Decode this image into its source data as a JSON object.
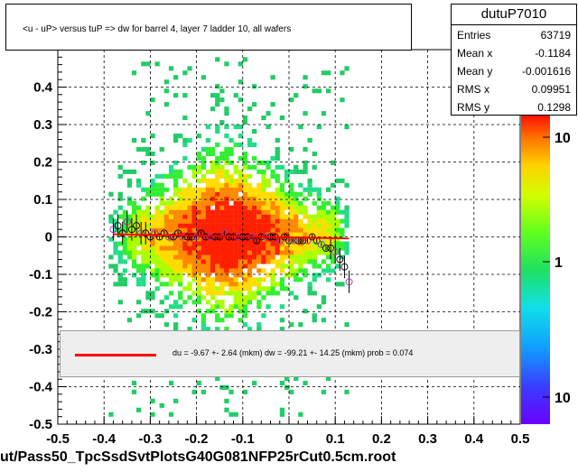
{
  "title": "<u - uP>       versus  tuP =>  dw for barrel 4, layer 7 ladder 10, all wafers",
  "stats": {
    "name": "dutuP7010",
    "rows": [
      {
        "label": "Entries",
        "value": "63719"
      },
      {
        "label": "Mean x",
        "value": "-0.1184"
      },
      {
        "label": "Mean y",
        "value": "-0.001616"
      },
      {
        "label": "RMS x",
        "value": "0.09951"
      },
      {
        "label": "RMS y",
        "value": "0.1298"
      }
    ]
  },
  "fit_text": "du =   -9.67 +-  2.64 (mkm) dw =  -99.21 +- 14.25 (mkm) prob = 0.074",
  "x_title": "ut/Pass50_TpcSsdSvtPlotsG40G081NFP25rCut0.5cm.root",
  "colors": {
    "fit_line": "#ff0000",
    "profile_marker": "#9933cc"
  },
  "chart_data": {
    "type": "heatmap",
    "title": "<u - uP>       versus  tuP =>  dw for barrel 4, layer 7 ladder 10, all wafers",
    "xlim": [
      -0.5,
      0.5
    ],
    "ylim": [
      -0.5,
      0.5
    ],
    "x_ticks": [
      "-0.5",
      "-0.4",
      "-0.3",
      "-0.2",
      "-0.1",
      "0",
      "0.1",
      "0.2",
      "0.3",
      "0.4",
      "0.5"
    ],
    "y_ticks": [
      "-0.5",
      "-0.4",
      "-0.3",
      "-0.2",
      "-0.1",
      "0",
      "0.1",
      "0.2",
      "0.3",
      "0.4"
    ],
    "z_scale": "log",
    "z_ticks": [
      "10",
      "1",
      "10"
    ],
    "grid": true,
    "populated_x_range": [
      -0.39,
      0.13
    ],
    "profile": {
      "x": [
        -0.38,
        -0.37,
        -0.36,
        -0.35,
        -0.34,
        -0.33,
        -0.32,
        -0.31,
        -0.3,
        -0.29,
        -0.28,
        -0.27,
        -0.26,
        -0.25,
        -0.24,
        -0.23,
        -0.22,
        -0.21,
        -0.2,
        -0.19,
        -0.18,
        -0.17,
        -0.16,
        -0.15,
        -0.14,
        -0.13,
        -0.12,
        -0.11,
        -0.1,
        -0.09,
        -0.08,
        -0.07,
        -0.06,
        -0.05,
        -0.04,
        -0.03,
        -0.02,
        -0.01,
        0.0,
        0.01,
        0.02,
        0.03,
        0.04,
        0.05,
        0.06,
        0.07,
        0.08,
        0.09,
        0.1,
        0.11,
        0.12,
        0.13
      ],
      "y": [
        0.02,
        0.03,
        0.01,
        0.04,
        0.02,
        0.03,
        0.01,
        0.01,
        0.0,
        0.01,
        0.0,
        0.01,
        0.0,
        0.0,
        0.01,
        0.0,
        0.0,
        0.0,
        0.0,
        0.01,
        0.0,
        0.0,
        0.0,
        0.0,
        0.01,
        0.0,
        0.0,
        0.0,
        0.0,
        0.0,
        0.0,
        -0.01,
        0.0,
        0.0,
        0.0,
        0.0,
        -0.01,
        0.0,
        -0.01,
        -0.01,
        -0.01,
        -0.01,
        -0.01,
        0.0,
        -0.01,
        -0.02,
        -0.03,
        -0.03,
        -0.04,
        -0.06,
        -0.08,
        -0.12
      ]
    },
    "fit": {
      "x": [
        -0.38,
        0.13
      ],
      "y": [
        0.007,
        -0.004
      ]
    }
  }
}
